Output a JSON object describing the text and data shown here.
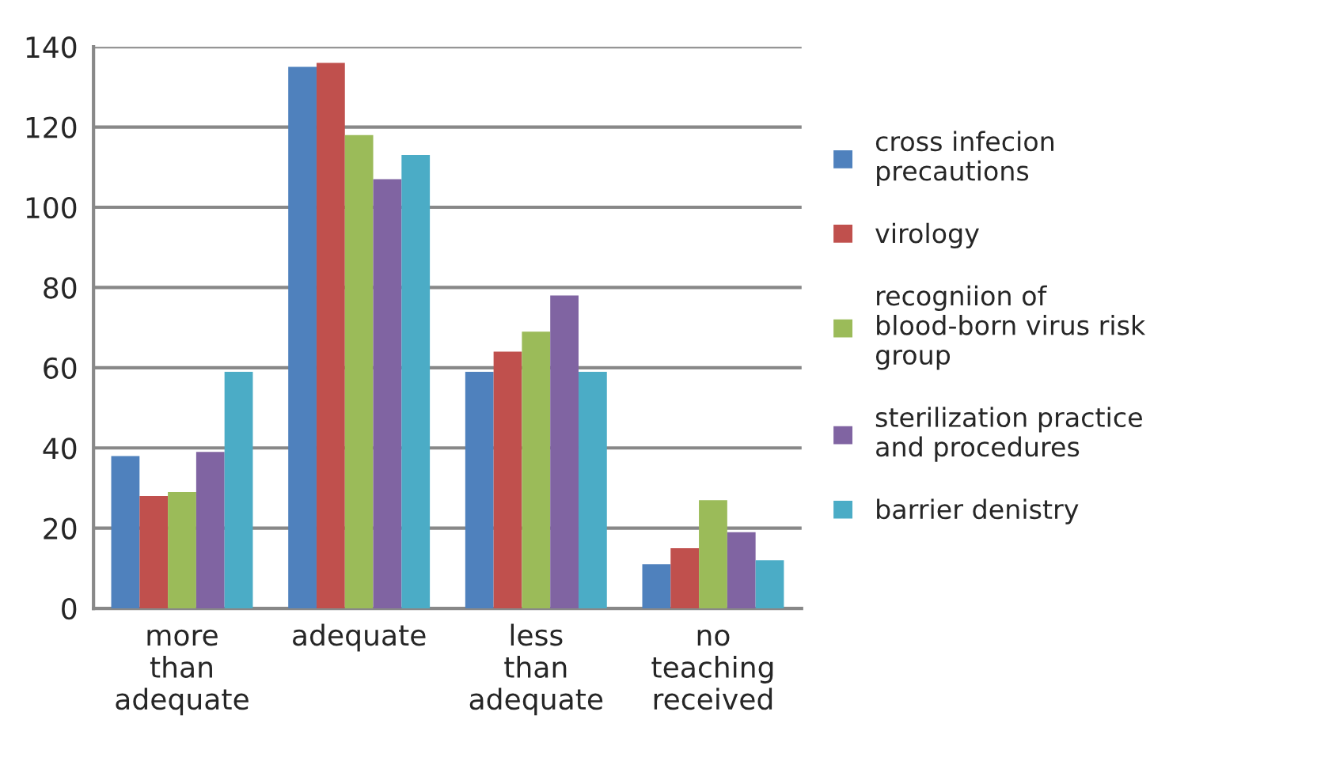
{
  "chart_data": {
    "type": "bar",
    "categories": [
      "more than adequate",
      "adequate",
      "less than adequate",
      "no teaching received"
    ],
    "series": [
      {
        "name": "cross infecion precautions",
        "color": "#4f81bd",
        "values": [
          38,
          135,
          59,
          11
        ]
      },
      {
        "name": "virology",
        "color": "#c0504d",
        "values": [
          28,
          136,
          64,
          15
        ]
      },
      {
        "name": "recogniion of blood-born virus risk group",
        "color": "#9bbb59",
        "values": [
          29,
          118,
          69,
          27
        ]
      },
      {
        "name": "sterilization practice and procedures",
        "color": "#8064a2",
        "values": [
          39,
          107,
          78,
          19
        ]
      },
      {
        "name": "barrier denistry",
        "color": "#4bacc6",
        "values": [
          59,
          113,
          59,
          12
        ]
      }
    ],
    "ylim": [
      0,
      140
    ],
    "yticks": [
      0,
      20,
      40,
      60,
      80,
      100,
      120,
      140
    ],
    "grid": "y",
    "legend": "right"
  }
}
